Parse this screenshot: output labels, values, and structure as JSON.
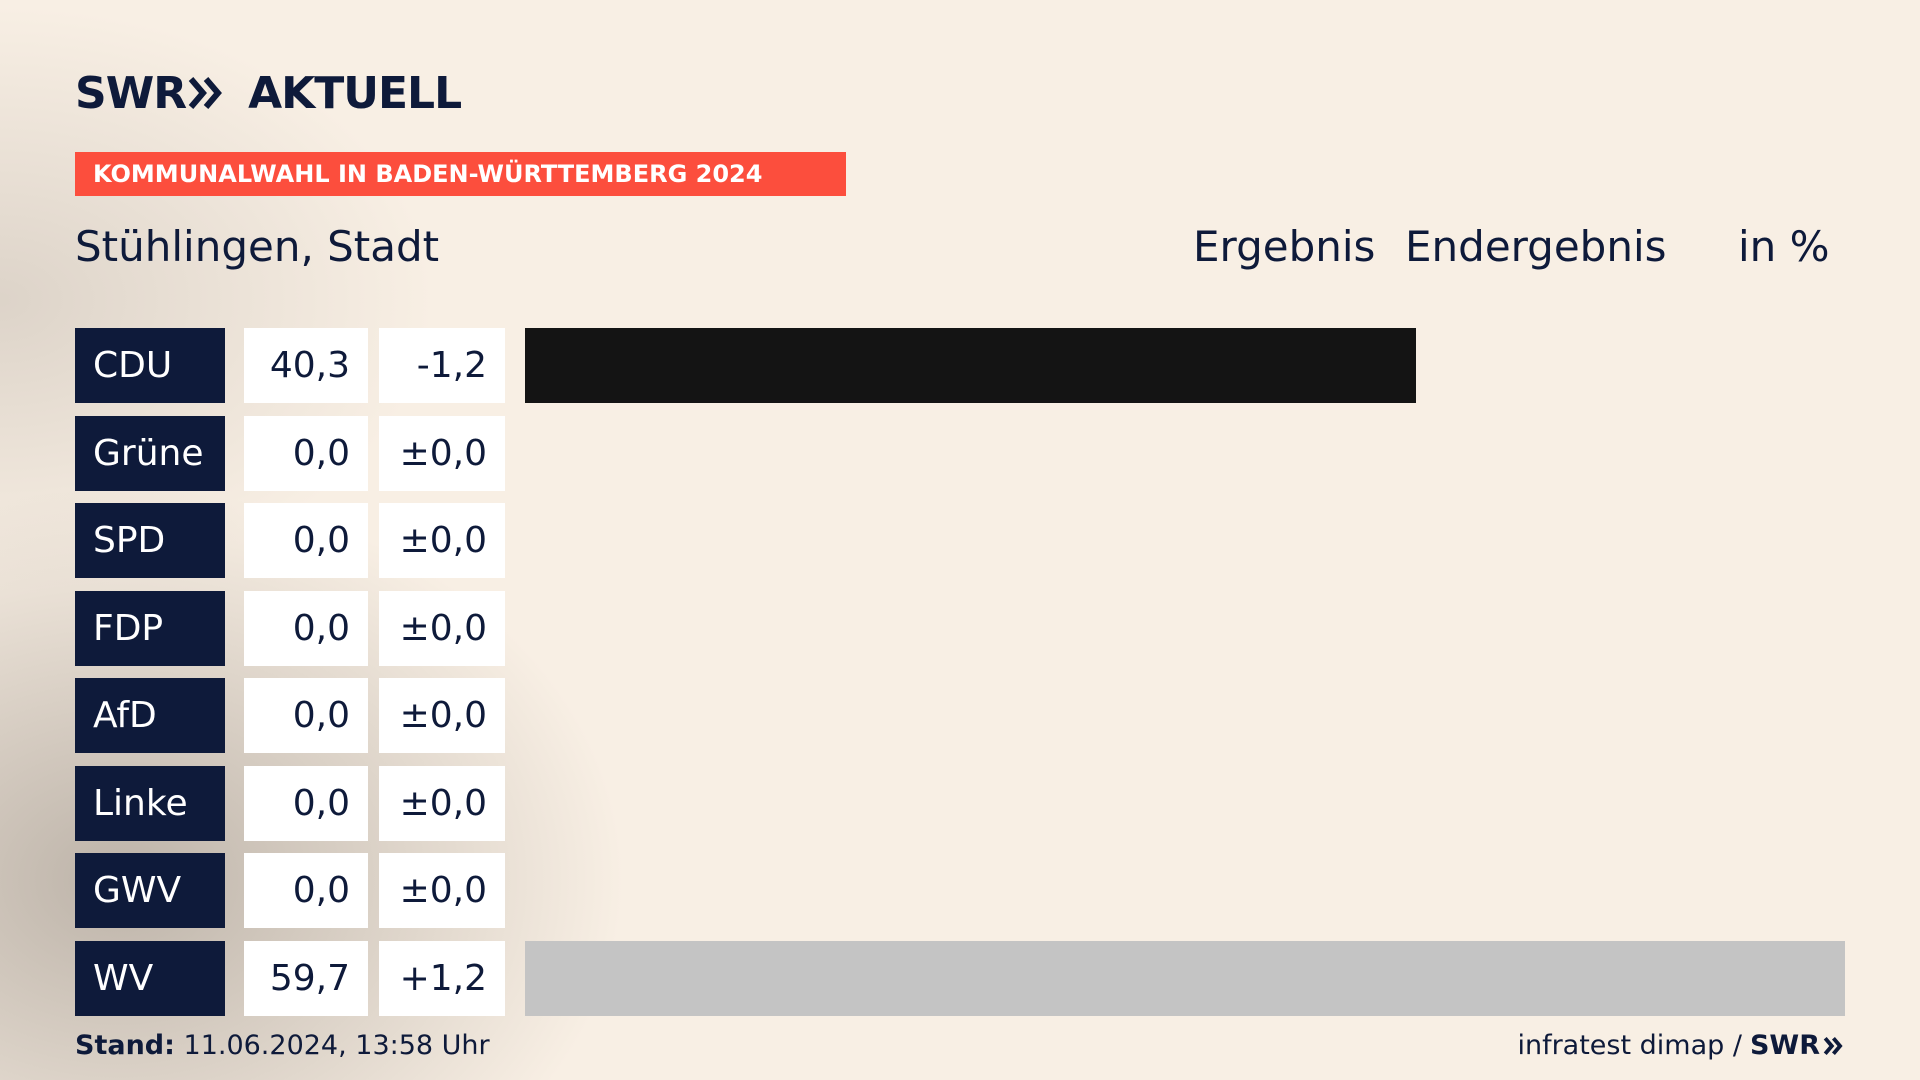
{
  "brand": {
    "swr": "SWR",
    "aktuell": "AKTUELL"
  },
  "banner": "KOMMUNALWAHL IN BADEN-WÜRTTEMBERG 2024",
  "location": "Stühlingen, Stadt",
  "headers": {
    "ergebnis": "Ergebnis",
    "status": "Endergebnis",
    "unit": "in %"
  },
  "footer": {
    "stand_label": "Stand:",
    "stand_value": "11.06.2024, 13:58 Uhr",
    "source": "infratest dimap /",
    "source_brand": "SWR"
  },
  "colors": {
    "navy": "#0e1a3a",
    "banner": "#fc4e3d",
    "background": "#f8efe4"
  },
  "chart_data": {
    "type": "bar",
    "orientation": "horizontal",
    "title": "",
    "xlim": [
      0,
      59.7
    ],
    "categories": [
      "CDU",
      "Grüne",
      "SPD",
      "FDP",
      "AfD",
      "Linke",
      "GWV",
      "WV"
    ],
    "values": [
      40.3,
      0.0,
      0.0,
      0.0,
      0.0,
      0.0,
      0.0,
      59.7
    ],
    "value_labels": [
      "40,3",
      "0,0",
      "0,0",
      "0,0",
      "0,0",
      "0,0",
      "0,0",
      "59,7"
    ],
    "changes": [
      -1.2,
      0.0,
      0.0,
      0.0,
      0.0,
      0.0,
      0.0,
      1.2
    ],
    "change_labels": [
      "-1,2",
      "±0,0",
      "±0,0",
      "±0,0",
      "±0,0",
      "±0,0",
      "±0,0",
      "+1,2"
    ],
    "bar_colors": [
      "#141414",
      "#46962b",
      "#e3000f",
      "#ffed00",
      "#009ee0",
      "#be3075",
      "#8a8a8a",
      "#c4c4c4"
    ]
  }
}
